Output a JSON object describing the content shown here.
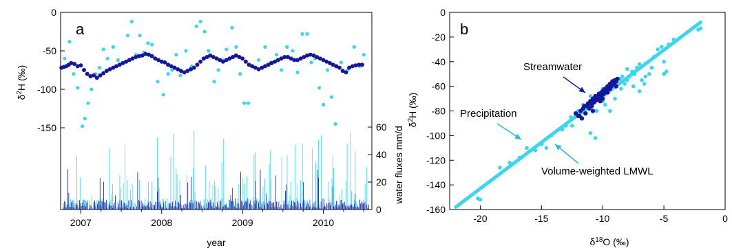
{
  "colors": {
    "precip": "#3ad6f0",
    "stream": "#16169a",
    "lmwl": "#3ad6f0",
    "annot_stream": "#1a1aa8",
    "annot_precip": "#2ab8e8"
  },
  "chart_data": [
    {
      "type": "scatter",
      "panel": "a",
      "ylabel_main": "δ",
      "ylabel_sup": "2",
      "ylabel_rest": "H (‰)",
      "ylabel2": "water fluxes mm/d",
      "xlabel": "year",
      "xlim": [
        2006.75,
        2010.6
      ],
      "ylim": [
        -150,
        0
      ],
      "yticks": [
        0,
        -50,
        -100,
        -150
      ],
      "ytick_labels": [
        "0",
        "-50",
        "-100",
        "-150"
      ],
      "y2lim": [
        0,
        60
      ],
      "y2ticks": [
        0,
        20,
        40,
        60
      ],
      "y2tick_labels": [
        "0",
        "20",
        "40",
        "60"
      ],
      "xticks": [
        2007,
        2008,
        2009,
        2010
      ],
      "xtick_labels": [
        "2007",
        "2008",
        "2009",
        "2010"
      ],
      "series": [
        {
          "marker": "dots-light",
          "x": [
            2006.8,
            2006.86,
            2006.91,
            2006.96,
            2007.02,
            2007.05,
            2007.09,
            2007.13,
            2007.18,
            2007.23,
            2007.28,
            2007.33,
            2007.4,
            2007.46,
            2007.52,
            2007.58,
            2007.63,
            2007.68,
            2007.73,
            2007.78,
            2007.83,
            2007.88,
            2007.95,
            2008.02,
            2008.08,
            2008.13,
            2008.18,
            2008.23,
            2008.3,
            2008.37,
            2008.43,
            2008.48,
            2008.53,
            2008.58,
            2008.65,
            2008.7,
            2008.75,
            2008.8,
            2008.87,
            2008.92,
            2008.97,
            2009.02,
            2009.07,
            2009.12,
            2009.2,
            2009.28,
            2009.35,
            2009.42,
            2009.48,
            2009.55,
            2009.62,
            2009.68,
            2009.74,
            2009.8,
            2009.85,
            2009.9,
            2009.95,
            2010.0,
            2010.05,
            2010.1,
            2010.15,
            2010.22,
            2010.3,
            2010.38,
            2010.45,
            2010.5
          ],
          "y": [
            -60,
            -38,
            -80,
            -98,
            -148,
            -138,
            -118,
            -100,
            -80,
            -72,
            -48,
            -60,
            -45,
            -62,
            -65,
            -30,
            -12,
            -55,
            -30,
            -52,
            -40,
            -42,
            -90,
            -107,
            -80,
            -75,
            -55,
            -82,
            -50,
            -70,
            -18,
            -12,
            -25,
            -50,
            -90,
            -75,
            -62,
            -48,
            -20,
            -45,
            -80,
            -118,
            -118,
            -70,
            -62,
            -45,
            -65,
            -55,
            -75,
            -45,
            -50,
            -78,
            -28,
            -28,
            -65,
            -60,
            -98,
            -120,
            -75,
            -110,
            -145,
            -65,
            -75,
            -45,
            -70,
            -55
          ]
        },
        {
          "marker": "dots-dark",
          "x": [
            2006.76,
            2006.79,
            2006.82,
            2006.85,
            2006.88,
            2006.92,
            2006.96,
            2007.0,
            2007.04,
            2007.08,
            2007.12,
            2007.16,
            2007.2,
            2007.24,
            2007.28,
            2007.32,
            2007.36,
            2007.4,
            2007.44,
            2007.48,
            2007.52,
            2007.56,
            2007.6,
            2007.64,
            2007.68,
            2007.72,
            2007.76,
            2007.8,
            2007.84,
            2007.88,
            2007.92,
            2007.96,
            2008.0,
            2008.04,
            2008.08,
            2008.12,
            2008.16,
            2008.2,
            2008.24,
            2008.28,
            2008.32,
            2008.36,
            2008.4,
            2008.44,
            2008.48,
            2008.52,
            2008.56,
            2008.6,
            2008.64,
            2008.68,
            2008.72,
            2008.76,
            2008.8,
            2008.84,
            2008.88,
            2008.92,
            2008.96,
            2009.0,
            2009.04,
            2009.08,
            2009.12,
            2009.16,
            2009.2,
            2009.24,
            2009.28,
            2009.32,
            2009.36,
            2009.4,
            2009.44,
            2009.48,
            2009.52,
            2009.56,
            2009.6,
            2009.64,
            2009.68,
            2009.72,
            2009.76,
            2009.8,
            2009.84,
            2009.88,
            2009.92,
            2009.96,
            2010.0,
            2010.04,
            2010.08,
            2010.12,
            2010.16,
            2010.2,
            2010.24,
            2010.28,
            2010.32,
            2010.36,
            2010.4,
            2010.44,
            2010.48
          ],
          "y": [
            -72,
            -71,
            -70,
            -68,
            -66,
            -67,
            -70,
            -69,
            -75,
            -80,
            -83,
            -82,
            -85,
            -82,
            -79,
            -76,
            -74,
            -72,
            -70,
            -68,
            -66,
            -64,
            -62,
            -60,
            -58,
            -57,
            -56,
            -54,
            -55,
            -57,
            -60,
            -62,
            -64,
            -65,
            -68,
            -70,
            -72,
            -74,
            -76,
            -78,
            -76,
            -74,
            -72,
            -68,
            -64,
            -60,
            -58,
            -56,
            -58,
            -60,
            -62,
            -64,
            -62,
            -60,
            -58,
            -56,
            -58,
            -60,
            -64,
            -68,
            -70,
            -72,
            -74,
            -72,
            -70,
            -68,
            -66,
            -64,
            -62,
            -60,
            -58,
            -58,
            -60,
            -62,
            -62,
            -60,
            -58,
            -56,
            -55,
            -56,
            -58,
            -60,
            -62,
            -64,
            -66,
            -68,
            -70,
            -72,
            -76,
            -78,
            -72,
            -70,
            -69,
            -68,
            -68
          ]
        }
      ]
    },
    {
      "type": "scatter",
      "panel": "b",
      "xlabel_main": "δ",
      "xlabel_sup": "18",
      "xlabel_rest": "O (‰)",
      "ylabel_main": "δ",
      "ylabel_sup": "2",
      "ylabel_rest": "H (‰)",
      "xlim": [
        -22.5,
        0
      ],
      "ylim": [
        -160,
        0
      ],
      "xticks": [
        -20,
        -15,
        -10,
        -5,
        0
      ],
      "xtick_labels": [
        "-20",
        "-15",
        "-10",
        "-5",
        "0"
      ],
      "yticks": [
        0,
        -20,
        -40,
        -60,
        -80,
        -100,
        -120,
        -140,
        -160
      ],
      "ytick_labels": [
        "0",
        "-20",
        "-40",
        "-60",
        "-80",
        "-100",
        "-120",
        "-140",
        "-160"
      ],
      "lmwl": {
        "x": [
          -22,
          -2
        ],
        "y": [
          -158,
          -8
        ]
      },
      "annotations": {
        "streamwater": "Streamwater",
        "precipitation": "Precipitation",
        "lmwl": "Volume-weighted LMWL"
      },
      "series": [
        {
          "marker": "dots-light",
          "x": [
            -20.2,
            -20.0,
            -18.4,
            -17.6,
            -16.8,
            -16.2,
            -15.5,
            -15.0,
            -14.6,
            -14.2,
            -13.6,
            -13.3,
            -13.0,
            -12.6,
            -12.2,
            -12.0,
            -11.6,
            -11.3,
            -11.0,
            -10.6,
            -10.4,
            -10.2,
            -10.0,
            -9.8,
            -9.6,
            -9.4,
            -9.2,
            -9.0,
            -8.8,
            -8.6,
            -8.4,
            -8.2,
            -8.0,
            -7.8,
            -7.6,
            -7.4,
            -7.2,
            -7.0,
            -6.8,
            -6.6,
            -6.2,
            -6.0,
            -5.8,
            -5.5,
            -5.2,
            -5.0,
            -5.0,
            -4.8,
            -4.6,
            -4.2,
            -2.2,
            -2.0,
            -11.0,
            -10.0,
            -10.5,
            -9.0,
            -8.5,
            -7.5,
            -7.0,
            -6.5,
            -8.0,
            -12.5
          ],
          "y": [
            -151,
            -152,
            -126,
            -122,
            -118,
            -110,
            -112,
            -107,
            -110,
            -100,
            -95,
            -95,
            -92,
            -85,
            -82,
            -80,
            -75,
            -78,
            -98,
            -102,
            -70,
            -68,
            -62,
            -75,
            -65,
            -80,
            -60,
            -56,
            -58,
            -54,
            -52,
            -58,
            -55,
            -52,
            -48,
            -50,
            -45,
            -42,
            -55,
            -58,
            -50,
            -45,
            -36,
            -30,
            -28,
            -40,
            -50,
            -48,
            -26,
            -22,
            -14,
            -13,
            -68,
            -72,
            -80,
            -70,
            -62,
            -60,
            -64,
            -52,
            -46,
            -92
          ]
        },
        {
          "marker": "dots-dark",
          "x": [
            -12.2,
            -12.0,
            -11.8,
            -11.6,
            -11.5,
            -11.3,
            -11.2,
            -11.0,
            -10.9,
            -10.8,
            -10.7,
            -10.6,
            -10.5,
            -10.4,
            -10.3,
            -10.2,
            -10.1,
            -10.0,
            -9.9,
            -9.8,
            -9.7,
            -9.6,
            -9.5,
            -9.4,
            -9.3,
            -9.2,
            -9.1,
            -9.0,
            -8.9,
            -8.8,
            -11.4,
            -11.1,
            -10.9,
            -10.7,
            -10.5,
            -10.3,
            -10.1,
            -9.9,
            -9.7,
            -9.5,
            -9.3,
            -9.1,
            -10.8,
            -10.2,
            -9.6,
            -11.7,
            -11.9,
            -10.0,
            -9.4,
            -8.9
          ],
          "y": [
            -82,
            -84,
            -80,
            -78,
            -76,
            -76,
            -74,
            -72,
            -75,
            -70,
            -72,
            -68,
            -70,
            -68,
            -66,
            -66,
            -65,
            -64,
            -63,
            -62,
            -62,
            -60,
            -60,
            -58,
            -58,
            -56,
            -57,
            -55,
            -56,
            -54,
            -82,
            -78,
            -76,
            -73,
            -71,
            -69,
            -68,
            -66,
            -64,
            -62,
            -60,
            -58,
            -80,
            -72,
            -65,
            -86,
            -84,
            -70,
            -62,
            -60
          ]
        }
      ]
    }
  ],
  "panel_labels": {
    "a": "a",
    "b": "b"
  }
}
